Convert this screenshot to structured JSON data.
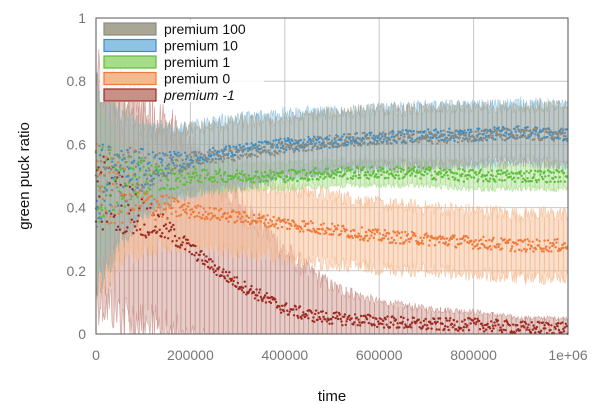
{
  "chart_data": {
    "type": "line",
    "xlabel": "time",
    "ylabel": "green puck ratio",
    "xlim": [
      0,
      1000000
    ],
    "ylim": [
      0,
      1
    ],
    "x_ticks": [
      {
        "value": 0,
        "label": "0"
      },
      {
        "value": 200000,
        "label": "200000"
      },
      {
        "value": 400000,
        "label": "400000"
      },
      {
        "value": 600000,
        "label": "600000"
      },
      {
        "value": 800000,
        "label": "800000"
      },
      {
        "value": 1000000,
        "label": "1e+06"
      }
    ],
    "y_ticks": [
      {
        "value": 0,
        "label": "0"
      },
      {
        "value": 0.2,
        "label": "0.2"
      },
      {
        "value": 0.4,
        "label": "0.4"
      },
      {
        "value": 0.6,
        "label": "0.6"
      },
      {
        "value": 0.8,
        "label": "0.8"
      },
      {
        "value": 1,
        "label": "1"
      }
    ],
    "grid": true,
    "legend_position": "top-left",
    "series": [
      {
        "name": "premium 100",
        "color": "#8c8a7e",
        "band_color": "#a8a796",
        "x": [
          0,
          50000,
          100000,
          150000,
          200000,
          250000,
          300000,
          400000,
          500000,
          600000,
          700000,
          800000,
          900000,
          1000000
        ],
        "y": [
          0.47,
          0.5,
          0.52,
          0.53,
          0.55,
          0.56,
          0.57,
          0.59,
          0.61,
          0.62,
          0.62,
          0.63,
          0.63,
          0.63
        ],
        "band_half_width": [
          0.3,
          0.2,
          0.13,
          0.12,
          0.1,
          0.1,
          0.1,
          0.09,
          0.09,
          0.09,
          0.09,
          0.09,
          0.09,
          0.09
        ]
      },
      {
        "name": "premium 10",
        "color": "#3a8ec9",
        "band_color": "#8fc3e3",
        "x": [
          0,
          50000,
          100000,
          150000,
          200000,
          250000,
          300000,
          400000,
          500000,
          600000,
          700000,
          800000,
          900000,
          1000000
        ],
        "y": [
          0.48,
          0.5,
          0.52,
          0.54,
          0.55,
          0.57,
          0.58,
          0.6,
          0.61,
          0.62,
          0.63,
          0.63,
          0.64,
          0.63
        ],
        "band_half_width": [
          0.3,
          0.18,
          0.12,
          0.11,
          0.1,
          0.1,
          0.1,
          0.1,
          0.09,
          0.09,
          0.09,
          0.09,
          0.09,
          0.09
        ]
      },
      {
        "name": "premium 1",
        "color": "#5cbf3a",
        "band_color": "#a7dc8a",
        "x": [
          0,
          50000,
          100000,
          150000,
          200000,
          250000,
          300000,
          400000,
          500000,
          600000,
          700000,
          800000,
          900000,
          1000000
        ],
        "y": [
          0.47,
          0.48,
          0.49,
          0.49,
          0.5,
          0.5,
          0.5,
          0.5,
          0.51,
          0.51,
          0.51,
          0.5,
          0.5,
          0.5
        ],
        "band_half_width": [
          0.25,
          0.1,
          0.07,
          0.06,
          0.05,
          0.05,
          0.04,
          0.04,
          0.04,
          0.04,
          0.04,
          0.04,
          0.04,
          0.04
        ]
      },
      {
        "name": "premium 0",
        "color": "#f07a3a",
        "band_color": "#f5b98f",
        "x": [
          0,
          50000,
          100000,
          150000,
          200000,
          250000,
          300000,
          400000,
          500000,
          600000,
          700000,
          800000,
          900000,
          1000000
        ],
        "y": [
          0.46,
          0.44,
          0.42,
          0.4,
          0.39,
          0.38,
          0.37,
          0.35,
          0.33,
          0.31,
          0.3,
          0.29,
          0.28,
          0.28
        ],
        "band_half_width": [
          0.3,
          0.2,
          0.15,
          0.12,
          0.11,
          0.11,
          0.11,
          0.11,
          0.11,
          0.1,
          0.1,
          0.1,
          0.1,
          0.1
        ]
      },
      {
        "name": "premium -1",
        "color": "#9e2a22",
        "band_color": "#c99088",
        "x": [
          0,
          50000,
          100000,
          150000,
          200000,
          250000,
          300000,
          350000,
          400000,
          450000,
          500000,
          600000,
          700000,
          800000,
          900000,
          1000000
        ],
        "y": [
          0.47,
          0.42,
          0.37,
          0.33,
          0.27,
          0.21,
          0.16,
          0.12,
          0.08,
          0.06,
          0.05,
          0.04,
          0.03,
          0.03,
          0.02,
          0.02
        ],
        "band_half_width": [
          0.35,
          0.35,
          0.35,
          0.33,
          0.3,
          0.28,
          0.26,
          0.22,
          0.18,
          0.14,
          0.1,
          0.06,
          0.05,
          0.04,
          0.03,
          0.03
        ]
      }
    ]
  }
}
